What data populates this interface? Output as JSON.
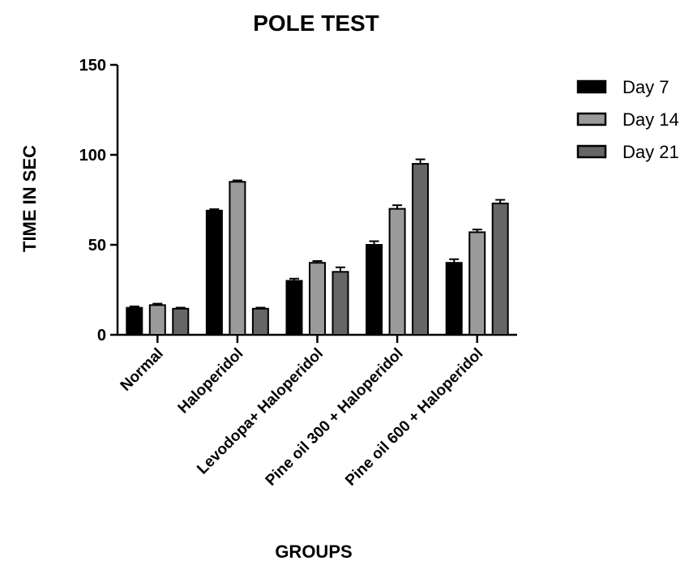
{
  "chart_data": {
    "type": "bar",
    "title": "POLE TEST",
    "xlabel": "GROUPS",
    "ylabel": "TIME IN SEC",
    "ylim": [
      0,
      150
    ],
    "yticks": [
      0,
      50,
      100,
      150
    ],
    "categories": [
      "Normal",
      "Haloperidol",
      "Levodopa+ Haloperidol",
      "Pine oil 300 + Haloperidol",
      "Pine oil 600 + Haloperidol"
    ],
    "series": [
      {
        "name": "Day 7",
        "values": [
          15,
          69,
          30,
          50,
          40
        ],
        "errors": [
          0.8,
          0.8,
          1.2,
          2.0,
          2.0
        ],
        "color": "#000000"
      },
      {
        "name": "Day 14",
        "values": [
          16.5,
          85,
          40,
          70,
          57
        ],
        "errors": [
          0.8,
          0.8,
          1.0,
          2.0,
          1.5
        ],
        "color": "#9a9a9a"
      },
      {
        "name": "Day 21",
        "values": [
          14.5,
          14.5,
          35,
          95,
          73
        ],
        "errors": [
          0.6,
          0.6,
          2.5,
          2.5,
          2.0
        ],
        "color": "#666666"
      }
    ],
    "grid": false,
    "legend_position": "top-right"
  }
}
